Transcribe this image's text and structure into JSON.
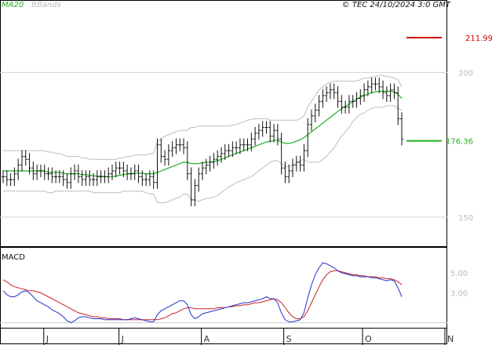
{
  "header": {
    "indicator_ma": "MA20",
    "indicator_bands": "BBands",
    "copyright": "© TEC 24/10/2024 3:0 GMT"
  },
  "colors": {
    "ma": "#1fae1f",
    "bands_line": "#bdbdbd",
    "bands_fill": "#ffffff",
    "price": "#111111",
    "macd_line": "#2233cc",
    "signal_line": "#cc2222",
    "resistance": "#cc0000",
    "support": "#1fae1f",
    "grid": "#d0d0d0"
  },
  "chart_data": [
    {
      "type": "line",
      "name": "price",
      "y_ticks": [
        150,
        200
      ],
      "y_tick_labels": [
        "150",
        "200"
      ],
      "ylim": [
        140,
        225
      ],
      "x_labels": [
        "J",
        "J",
        "A",
        "S",
        "O",
        "N"
      ],
      "x_label_positions": [
        12,
        33,
        56,
        79,
        101,
        124
      ],
      "x_count": 125,
      "close": [
        164,
        163,
        163,
        165,
        168,
        171,
        170,
        167,
        165,
        166,
        166,
        165,
        165,
        164,
        164,
        164,
        163,
        162,
        165,
        166,
        164,
        163,
        164,
        163,
        163,
        164,
        164,
        164,
        165,
        166,
        167,
        167,
        166,
        165,
        165,
        166,
        164,
        163,
        163,
        164,
        162,
        175,
        171,
        170,
        173,
        174,
        175,
        175,
        174,
        165,
        156,
        161,
        165,
        167,
        168,
        169,
        170,
        171,
        172,
        173,
        173,
        174,
        174,
        175,
        175,
        175,
        177,
        179,
        180,
        181,
        181,
        178,
        180,
        177,
        167,
        164,
        166,
        168,
        169,
        168,
        173,
        182,
        185,
        187,
        190,
        192,
        193,
        194,
        193,
        190,
        188,
        188,
        190,
        190,
        191,
        192,
        194,
        195,
        196,
        196,
        195,
        193,
        192,
        194,
        193,
        184,
        177
      ],
      "ma20": [
        166,
        166,
        166,
        166,
        166,
        166,
        166,
        166,
        166,
        166,
        166,
        166,
        165.5,
        165.5,
        165.5,
        165.5,
        165.2,
        165,
        165,
        165,
        165,
        164.7,
        164.7,
        164.5,
        164.3,
        164.2,
        164.2,
        164,
        164,
        164,
        164.2,
        164.5,
        164.7,
        165,
        165,
        165.2,
        165.2,
        165.2,
        165,
        165,
        165,
        165.5,
        166,
        166.5,
        167,
        167.5,
        168,
        168.5,
        169,
        169,
        168.5,
        168.5,
        168.5,
        168.8,
        169,
        169,
        169.2,
        169.5,
        170,
        170.5,
        171,
        171.5,
        172,
        172.5,
        173,
        173.5,
        174,
        174.5,
        175,
        175.5,
        176,
        176.2,
        176.5,
        176.5,
        176,
        175.5,
        175.5,
        175.8,
        176.3,
        176.8,
        177.5,
        178.5,
        179.5,
        180.5,
        181.5,
        182.5,
        183.5,
        184.5,
        185.5,
        186.5,
        187.5,
        188.3,
        189,
        190,
        190.8,
        191.5,
        192,
        192.5,
        193,
        193.3,
        193.5,
        193.5,
        193.5,
        193.5,
        193.3,
        192.5,
        191
      ],
      "bb_upper": [
        173,
        173,
        173,
        173,
        173,
        173,
        173,
        173,
        173,
        173,
        173,
        173,
        172.5,
        172.5,
        172,
        172,
        171.5,
        171,
        171,
        171,
        171,
        170.5,
        170.5,
        170,
        170,
        170,
        170,
        170,
        170,
        170,
        170,
        170.5,
        170.5,
        171,
        171,
        171.5,
        171.5,
        171.5,
        171.5,
        172,
        172,
        176,
        177,
        178,
        178.5,
        179,
        179.5,
        180,
        180,
        180,
        181,
        181,
        181.5,
        181.5,
        181.5,
        181.5,
        181.5,
        181.5,
        181.5,
        181.5,
        181.5,
        181.8,
        182,
        182.5,
        183,
        183.5,
        183.8,
        184,
        184,
        184,
        184,
        183.5,
        183.5,
        183.5,
        183.5,
        183.5,
        183.5,
        183.5,
        183.5,
        184,
        185,
        188,
        190,
        192,
        194,
        195,
        196,
        196.5,
        197,
        197,
        197,
        197,
        197,
        197,
        197,
        197.5,
        198,
        198,
        198.5,
        198.5,
        199,
        199,
        198.5,
        198.5,
        198,
        197.5,
        195
      ],
      "bb_lower": [
        159,
        159,
        159,
        159,
        159,
        159,
        159,
        159,
        159,
        159,
        159,
        159,
        158.5,
        158.5,
        159,
        159,
        159,
        159,
        159,
        159,
        159,
        159,
        159,
        159,
        158.5,
        158.5,
        158.5,
        158.5,
        158.5,
        158.5,
        158.5,
        158.5,
        159,
        159,
        159,
        159,
        159,
        159,
        158.5,
        158,
        158,
        155,
        155,
        155,
        155.5,
        156,
        156.5,
        157,
        158,
        158,
        156,
        156,
        155.5,
        156,
        156.5,
        156.5,
        157,
        157.5,
        158.5,
        159.5,
        160.5,
        161,
        162,
        162.5,
        163,
        163.5,
        164,
        165,
        166,
        167,
        168,
        169,
        169.5,
        169.5,
        168.5,
        167.5,
        167.5,
        168,
        169,
        169.5,
        170,
        169,
        169,
        169,
        169,
        170,
        171,
        172.5,
        174,
        176,
        178,
        179.5,
        181,
        183,
        184.5,
        185.5,
        186,
        187,
        187.5,
        188,
        188,
        188,
        188.5,
        188.5,
        188.5,
        187.5,
        187
      ],
      "last_value": "176.36",
      "resistance": {
        "value": 211.99,
        "label": "211.99"
      },
      "support": {
        "value": 176.36,
        "label": "176.36"
      }
    },
    {
      "type": "line",
      "name": "MACD",
      "title": "MACD",
      "y_ticks": [
        5.0,
        3.0
      ],
      "y_tick_labels": [
        "5.00",
        "3.00"
      ],
      "ylim": [
        -0.5,
        7.5
      ],
      "macd": [
        3.2,
        2.8,
        2.6,
        2.6,
        2.8,
        3.1,
        3.2,
        3.0,
        2.6,
        2.2,
        2.0,
        1.8,
        1.6,
        1.3,
        1.1,
        0.9,
        0.6,
        0.2,
        0.0,
        0.2,
        0.5,
        0.6,
        0.6,
        0.5,
        0.4,
        0.4,
        0.4,
        0.3,
        0.3,
        0.3,
        0.3,
        0.3,
        0.3,
        0.3,
        0.4,
        0.5,
        0.4,
        0.3,
        0.2,
        0.1,
        0.1,
        0.8,
        1.2,
        1.4,
        1.6,
        1.8,
        2.0,
        2.2,
        2.2,
        1.8,
        0.8,
        0.4,
        0.6,
        0.9,
        1.0,
        1.1,
        1.2,
        1.3,
        1.4,
        1.5,
        1.6,
        1.7,
        1.8,
        1.9,
        2.0,
        2.0,
        2.1,
        2.2,
        2.3,
        2.4,
        2.6,
        2.4,
        2.4,
        2.0,
        1.0,
        0.3,
        0.1,
        0.1,
        0.2,
        0.3,
        1.0,
        2.5,
        3.8,
        4.8,
        5.5,
        6.0,
        5.9,
        5.7,
        5.5,
        5.2,
        5.0,
        4.9,
        4.8,
        4.7,
        4.7,
        4.6,
        4.6,
        4.6,
        4.5,
        4.5,
        4.4,
        4.3,
        4.2,
        4.3,
        4.2,
        3.5,
        2.6
      ],
      "signal": [
        4.3,
        4.1,
        3.8,
        3.6,
        3.5,
        3.4,
        3.3,
        3.2,
        3.2,
        3.1,
        3.0,
        2.8,
        2.6,
        2.4,
        2.2,
        2.0,
        1.8,
        1.6,
        1.4,
        1.2,
        1.0,
        0.9,
        0.8,
        0.7,
        0.6,
        0.6,
        0.5,
        0.5,
        0.4,
        0.4,
        0.4,
        0.4,
        0.3,
        0.3,
        0.3,
        0.3,
        0.3,
        0.3,
        0.3,
        0.3,
        0.3,
        0.3,
        0.4,
        0.5,
        0.7,
        0.9,
        1.0,
        1.2,
        1.4,
        1.5,
        1.5,
        1.4,
        1.4,
        1.4,
        1.4,
        1.4,
        1.4,
        1.5,
        1.5,
        1.5,
        1.6,
        1.6,
        1.7,
        1.7,
        1.8,
        1.8,
        1.9,
        2.0,
        2.0,
        2.1,
        2.2,
        2.3,
        2.4,
        2.3,
        2.0,
        1.5,
        1.0,
        0.6,
        0.4,
        0.4,
        0.6,
        1.2,
        2.0,
        2.8,
        3.6,
        4.3,
        4.8,
        5.1,
        5.2,
        5.2,
        5.1,
        5.0,
        4.9,
        4.8,
        4.8,
        4.7,
        4.7,
        4.6,
        4.6,
        4.6,
        4.5,
        4.5,
        4.4,
        4.4,
        4.3,
        4.1,
        3.8
      ]
    }
  ]
}
